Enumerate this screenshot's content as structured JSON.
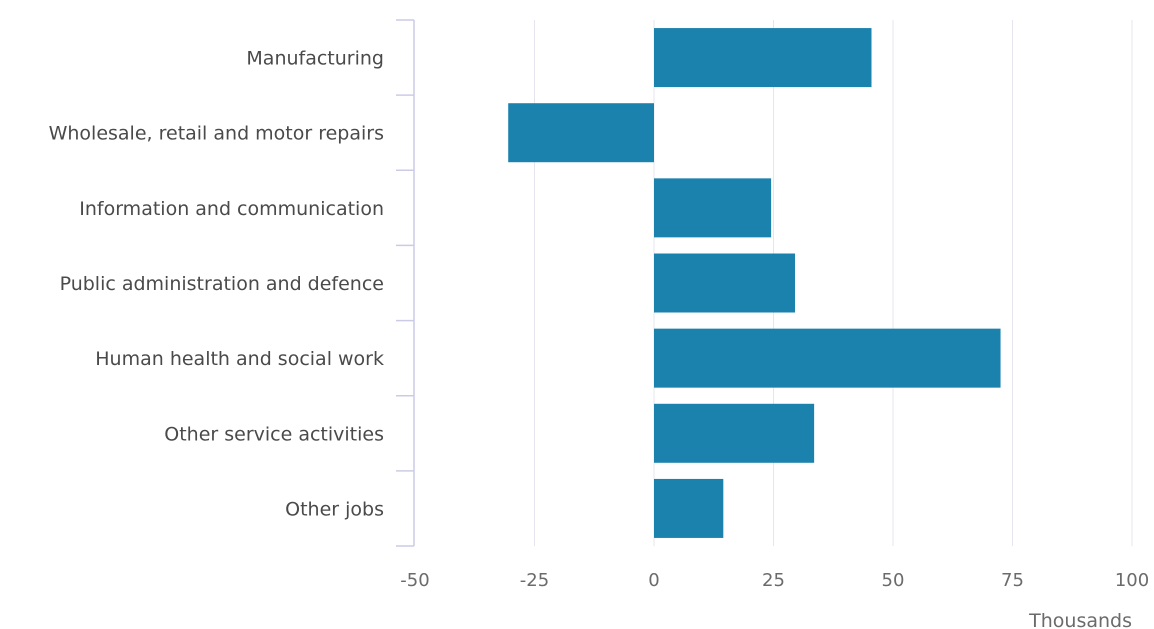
{
  "chart_data": {
    "type": "bar",
    "orientation": "horizontal",
    "categories": [
      "Manufacturing",
      "Wholesale, retail and motor repairs",
      "Information and communication",
      "Public administration and defence",
      "Human health and social work",
      "Other service activities",
      "Other jobs"
    ],
    "values": [
      45.5,
      -30.5,
      24.5,
      29.5,
      72.5,
      33.5,
      14.5
    ],
    "xlim": [
      -50,
      100
    ],
    "xticks": [
      -50,
      -25,
      0,
      25,
      50,
      75,
      100
    ],
    "xlabel": "Thousands",
    "grid": "vertical",
    "bar_color": "#1b82ad",
    "grid_color": "#e5e5ef",
    "axis_color": "#cccbe6"
  }
}
